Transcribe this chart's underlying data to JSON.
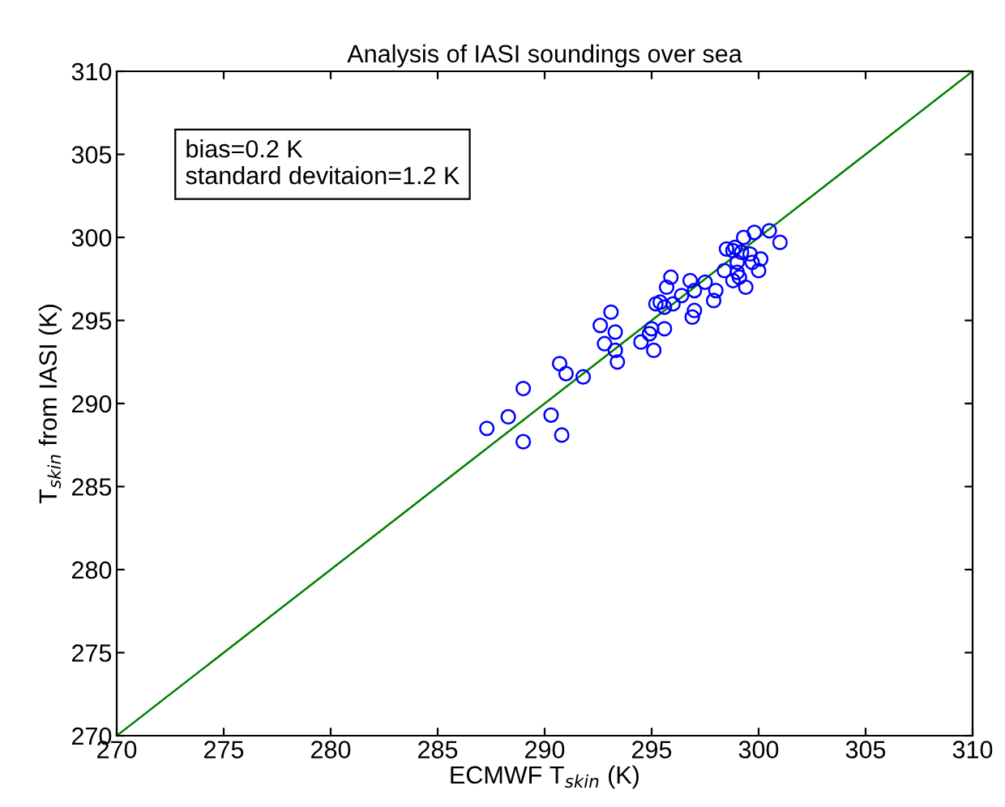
{
  "chart_data": {
    "type": "scatter",
    "title": "Analysis of IASI soundings over sea",
    "xlabel": "ECMWF T$_{skin}$ (K)",
    "ylabel": "T$_{skin}$ from IASI (K)",
    "annotations": [
      "bias=0.2 K\nstandard devitaion=1.2 K"
    ],
    "xlim": [
      270,
      310
    ],
    "ylim": [
      270,
      310
    ],
    "xticks": [
      270,
      275,
      280,
      285,
      290,
      295,
      300,
      305,
      310
    ],
    "yticks": [
      270,
      275,
      280,
      285,
      290,
      295,
      300,
      305,
      310
    ],
    "grid": false,
    "legend": false,
    "marker": "circle",
    "series": [
      {
        "color": "#0000ff",
        "x": [
          287.3,
          288.3,
          289.0,
          289.0,
          290.3,
          290.7,
          290.8,
          291.0,
          291.8,
          292.6,
          292.8,
          293.1,
          293.3,
          293.3,
          293.4,
          294.5,
          294.9,
          295.0,
          295.1,
          295.2,
          295.4,
          295.6,
          295.6,
          295.7,
          295.9,
          296.0,
          296.4,
          296.8,
          296.9,
          297.0,
          297.0,
          297.5,
          297.9,
          298.0,
          298.4,
          298.5,
          298.8,
          298.8,
          299.0,
          299.0,
          299.2,
          299.3,
          299.4,
          299.6,
          299.7,
          299.8,
          300.0,
          300.1,
          300.5,
          301.0,
          299.1,
          298.9
        ],
        "values": [
          288.5,
          289.2,
          290.9,
          287.7,
          289.3,
          292.4,
          288.1,
          291.8,
          291.6,
          294.7,
          293.6,
          295.5,
          294.3,
          293.2,
          292.5,
          293.7,
          294.2,
          294.5,
          293.2,
          296.0,
          296.1,
          294.5,
          295.8,
          297.0,
          297.6,
          296.0,
          296.5,
          297.4,
          295.2,
          295.6,
          296.8,
          297.3,
          296.2,
          296.8,
          298.0,
          299.3,
          299.2,
          297.4,
          297.9,
          298.5,
          299.1,
          300.0,
          297.0,
          299.0,
          298.5,
          300.3,
          298.0,
          298.7,
          300.4,
          299.7,
          297.6,
          299.4
        ]
      },
      {
        "type": "line",
        "color": "#008000",
        "marker": "none",
        "line_style": "solid",
        "x": [
          270,
          310
        ],
        "values": [
          270,
          310
        ]
      }
    ]
  }
}
